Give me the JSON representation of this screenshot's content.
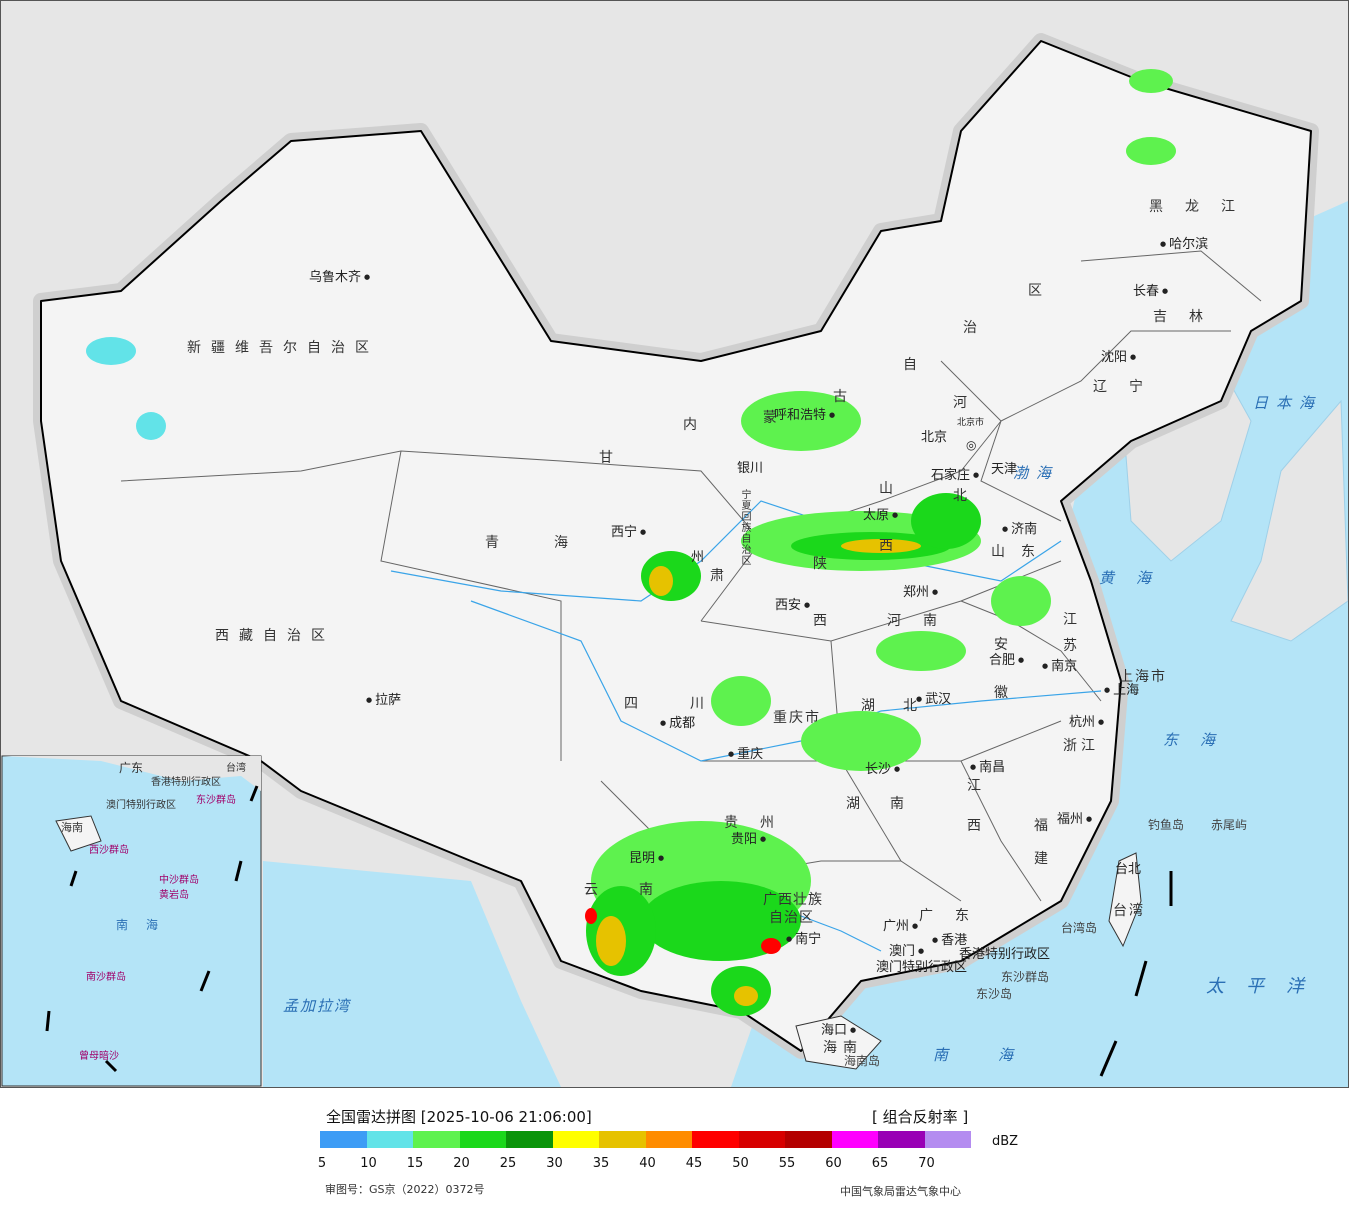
{
  "map": {
    "provinces": [
      {
        "key": "xinjiang",
        "text": "新疆维吾尔自治区"
      },
      {
        "key": "xizang",
        "text": "西藏自治区"
      },
      {
        "key": "qinghai",
        "text": "青海"
      },
      {
        "key": "gansu_gan",
        "text": "甘"
      },
      {
        "key": "gansu_su",
        "text": "肃"
      },
      {
        "key": "neimenggu_nei",
        "text": "内"
      },
      {
        "key": "neimenggu_meng",
        "text": "蒙"
      },
      {
        "key": "neimenggu_gu",
        "text": "古"
      },
      {
        "key": "neimenggu_zi",
        "text": "自"
      },
      {
        "key": "neimenggu_zhi",
        "text": "治"
      },
      {
        "key": "neimenggu_qu",
        "text": "区"
      },
      {
        "key": "heilongjiang",
        "text": "黑龙江"
      },
      {
        "key": "jilin",
        "text": "吉林"
      },
      {
        "key": "liaoning",
        "text": "辽宁"
      },
      {
        "key": "hebei_he",
        "text": "河"
      },
      {
        "key": "hebei_bei",
        "text": "北"
      },
      {
        "key": "shanxi_shan",
        "text": "山"
      },
      {
        "key": "shanxi_xi",
        "text": "西"
      },
      {
        "key": "shandong",
        "text": "山东"
      },
      {
        "key": "ningxia",
        "text": "宁夏回族自治区"
      },
      {
        "key": "shaanxi_shan",
        "text": "陕"
      },
      {
        "key": "shaanxi_xi",
        "text": "西"
      },
      {
        "key": "henan",
        "text": "河南"
      },
      {
        "key": "jiangsu_jiang",
        "text": "江"
      },
      {
        "key": "jiangsu_su",
        "text": "苏"
      },
      {
        "key": "anhui_an",
        "text": "安"
      },
      {
        "key": "anhui_hui",
        "text": "徽"
      },
      {
        "key": "shanghai",
        "text": "上海市"
      },
      {
        "key": "sichuan",
        "text": "四川"
      },
      {
        "key": "chongqing",
        "text": "重庆市"
      },
      {
        "key": "hubei",
        "text": "湖北"
      },
      {
        "key": "zhejiang",
        "text": "浙江"
      },
      {
        "key": "hunan",
        "text": "湖南"
      },
      {
        "key": "jiangxi_jiang",
        "text": "江"
      },
      {
        "key": "jiangxi_xi",
        "text": "西"
      },
      {
        "key": "guizhou",
        "text": "贵州"
      },
      {
        "key": "fujian_fu",
        "text": "福"
      },
      {
        "key": "fujian_jian",
        "text": "建"
      },
      {
        "key": "yunnan_yun",
        "text": "云"
      },
      {
        "key": "yunnan_nan",
        "text": "南"
      },
      {
        "key": "guangxi_1",
        "text": "广西壮族"
      },
      {
        "key": "guangxi_2",
        "text": "自治区"
      },
      {
        "key": "guangdong",
        "text": "广东"
      },
      {
        "key": "taiwan_1",
        "text": "台北"
      },
      {
        "key": "taiwan_2",
        "text": "台湾"
      },
      {
        "key": "hainan_prov",
        "text": "海南"
      },
      {
        "key": "hongkong",
        "text": "香港特别行政区"
      },
      {
        "key": "macau",
        "text": "澳门特别行政区"
      },
      {
        "key": "beijing_short",
        "text": "北京"
      },
      {
        "key": "tianjin_short",
        "text": "天津"
      },
      {
        "key": "beijing_tag",
        "text": "北京市"
      }
    ],
    "cities": [
      {
        "key": "urumqi",
        "text": "乌鲁木齐",
        "side": "left"
      },
      {
        "key": "lhasa",
        "text": "拉萨",
        "side": "right"
      },
      {
        "key": "xining",
        "text": "西宁",
        "side": "left"
      },
      {
        "key": "yinchuan",
        "text": "银川",
        "side": "right"
      },
      {
        "key": "hohhot",
        "text": "呼和浩特",
        "side": "left"
      },
      {
        "key": "beijing",
        "text": "北京",
        "side": "left"
      },
      {
        "key": "tianjin",
        "text": "天津",
        "side": "right"
      },
      {
        "key": "shijiazhuang",
        "text": "石家庄",
        "side": "left"
      },
      {
        "key": "taiyuan",
        "text": "太原",
        "side": "right"
      },
      {
        "key": "jinan",
        "text": "济南",
        "side": "right"
      },
      {
        "key": "harbin",
        "text": "哈尔滨",
        "side": "right"
      },
      {
        "key": "changchun",
        "text": "长春",
        "side": "left"
      },
      {
        "key": "shenyang",
        "text": "沈阳",
        "side": "left"
      },
      {
        "key": "xian",
        "text": "西安",
        "side": "left"
      },
      {
        "key": "zhengzhou",
        "text": "郑州",
        "side": "left"
      },
      {
        "key": "hefei",
        "text": "合肥",
        "side": "left"
      },
      {
        "key": "nanjing",
        "text": "南京",
        "side": "right"
      },
      {
        "key": "shanghai_city",
        "text": "上海",
        "side": "right"
      },
      {
        "key": "hangzhou",
        "text": "杭州",
        "side": "left"
      },
      {
        "key": "wuhan",
        "text": "武汉",
        "side": "right"
      },
      {
        "key": "chengdu",
        "text": "成都",
        "side": "right"
      },
      {
        "key": "chongqing_city",
        "text": "重庆",
        "side": "right"
      },
      {
        "key": "changsha",
        "text": "长沙",
        "side": "left"
      },
      {
        "key": "nanchang",
        "text": "南昌",
        "side": "right"
      },
      {
        "key": "fuzhou",
        "text": "福州",
        "side": "left"
      },
      {
        "key": "guiyang",
        "text": "贵阳",
        "side": "left"
      },
      {
        "key": "kunming",
        "text": "昆明",
        "side": "left"
      },
      {
        "key": "nanning",
        "text": "南宁",
        "side": "right"
      },
      {
        "key": "guangzhou",
        "text": "广州",
        "side": "left"
      },
      {
        "key": "hongkong_city",
        "text": "香港",
        "side": "right"
      },
      {
        "key": "macau_city",
        "text": "澳门",
        "side": "left"
      },
      {
        "key": "haikou",
        "text": "海口",
        "side": "left"
      },
      {
        "key": "lanzhou",
        "text": "州",
        "side": "left"
      }
    ],
    "seas": [
      {
        "key": "riben",
        "text": "日本海"
      },
      {
        "key": "bohai",
        "text": "渤海"
      },
      {
        "key": "huanghai",
        "text": "黄海"
      },
      {
        "key": "donghai",
        "text": "东海"
      },
      {
        "key": "taipingyang",
        "text": "太平洋"
      },
      {
        "key": "nanhai",
        "text": "南海"
      },
      {
        "key": "mengjiala",
        "text": "孟加拉湾"
      }
    ],
    "islands": [
      {
        "key": "diaoyu",
        "text": "钓鱼岛"
      },
      {
        "key": "chiwei",
        "text": "赤尾屿"
      },
      {
        "key": "dongsha_qundao",
        "text": "东沙群岛"
      },
      {
        "key": "dongsha_dao",
        "text": "东沙岛"
      },
      {
        "key": "hainan_dao",
        "text": "海南岛"
      },
      {
        "key": "taiwan_dao",
        "text": "台湾岛"
      }
    ],
    "inset": [
      {
        "key": "i1",
        "text": "广东"
      },
      {
        "key": "i2",
        "text": "澳门特别行政区"
      },
      {
        "key": "i3",
        "text": "香港特别行政区"
      },
      {
        "key": "i4",
        "text": "东沙群岛"
      },
      {
        "key": "i5",
        "text": "海南"
      },
      {
        "key": "i6",
        "text": "西沙群岛"
      },
      {
        "key": "i7",
        "text": "中沙群岛"
      },
      {
        "key": "i8",
        "text": "黄岩岛"
      },
      {
        "key": "i9",
        "text": "南海"
      },
      {
        "key": "i10",
        "text": "南沙群岛"
      },
      {
        "key": "i11",
        "text": "曾母暗沙"
      },
      {
        "key": "i12",
        "text": "台湾"
      }
    ]
  },
  "legend": {
    "title": "全国雷达拼图 [2025-10-06 21:06:00]",
    "product": "[ 组合反射率 ]",
    "unit": "dBZ",
    "ticks": [
      "5",
      "10",
      "15",
      "20",
      "25",
      "30",
      "35",
      "40",
      "45",
      "50",
      "55",
      "60",
      "65",
      "70"
    ],
    "colors": [
      "#3d9cf5",
      "#62e3e8",
      "#5ef24e",
      "#1bd81b",
      "#0a940a",
      "#ffff00",
      "#e6c200",
      "#ff8c00",
      "#ff0000",
      "#d70000",
      "#b40000",
      "#ff00ff",
      "#9900b5",
      "#b48cf0"
    ],
    "approval": "审图号：GS京（2022）0372号",
    "source": "中国气象局雷达气象中心"
  }
}
